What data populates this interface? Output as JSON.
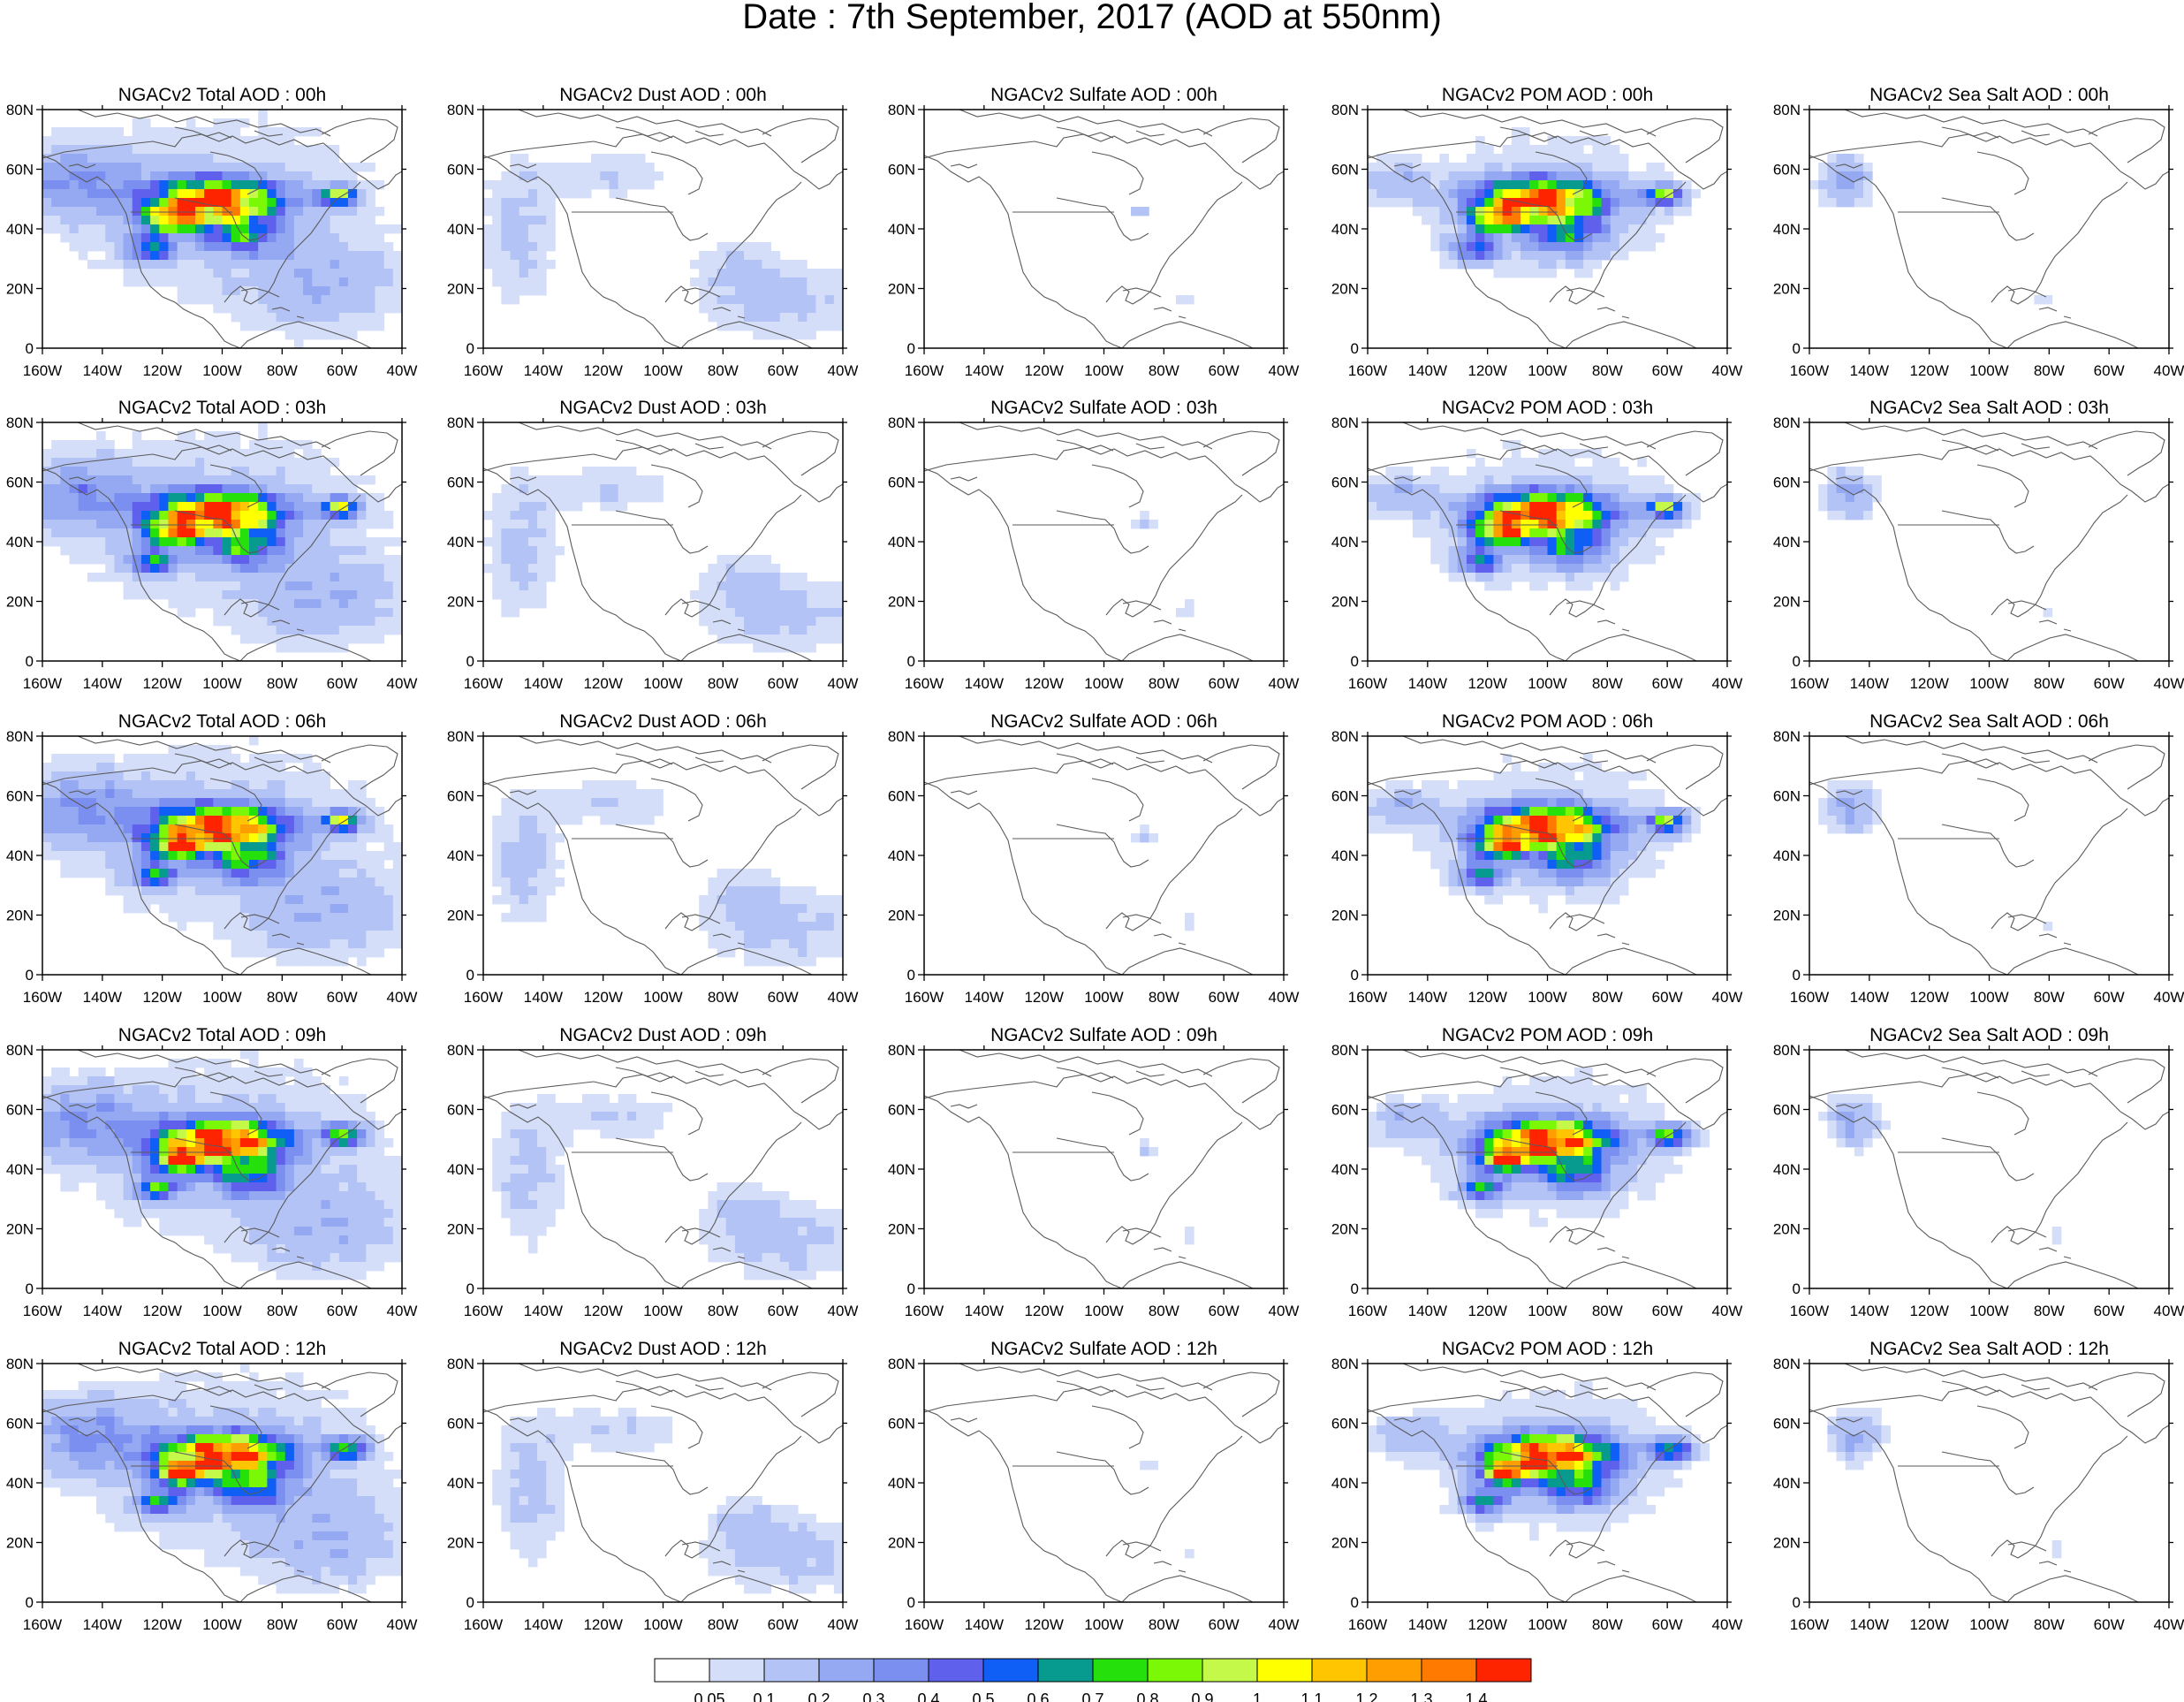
{
  "figure": {
    "title": "Date : 7th September, 2017 (AOD at 550nm)"
  },
  "panels": {
    "row_times": [
      "00h",
      "03h",
      "06h",
      "09h",
      "12h"
    ],
    "columns": [
      {
        "key": "total",
        "titles": [
          "NGACv2 Total AOD : 00h",
          "NGACv2 Total AOD : 03h",
          "NGACv2 Total AOD : 06h",
          "NGACv2 Total AOD : 09h",
          "NGACv2 Total AOD  : 12h"
        ]
      },
      {
        "key": "dust",
        "titles": [
          "NGACv2 Dust AOD : 00h",
          "NGACv2 Dust AOD : 03h",
          "NGACv2 Dust AOD : 06h",
          "NGACv2 Dust AOD : 09h",
          "NGACv2 Dust AOD : 12h"
        ]
      },
      {
        "key": "sulfate",
        "titles": [
          "NGACv2 Sulfate AOD : 00h",
          "NGACv2 Sulfate AOD : 03h",
          "NGACv2 Sulfate AOD : 06h",
          "NGACv2 Sulfate AOD : 09h",
          "NGACv2 Sulfate AOD : 12h"
        ]
      },
      {
        "key": "pom",
        "titles": [
          "NGACv2 POM AOD : 00h",
          "NGACv2 POM AOD : 03h",
          "NGACv2 POM AOD : 06h",
          "NGACv2 POM AOD : 09h",
          "NGACv2 POM  AOD : 12h"
        ]
      },
      {
        "key": "seasalt",
        "titles": [
          "NGACv2 Sea Salt AOD : 00h",
          "NGACv2 Sea Salt AOD : 03h",
          "NGACv2 Sea Salt AOD : 06h",
          "NGACv2 Sea Salt  AOD : 09h",
          "NGACv2 Sea Salt  AOD : 12h"
        ]
      }
    ]
  },
  "axes": {
    "lon_ticks": [
      "160W",
      "140W",
      "120W",
      "100W",
      "80W",
      "60W",
      "40W"
    ],
    "lon_values": [
      -160,
      -140,
      -120,
      -100,
      -80,
      -60,
      -40
    ],
    "lat_ticks": [
      "0",
      "20N",
      "40N",
      "60N",
      "80N"
    ],
    "lat_values": [
      0,
      20,
      40,
      60,
      80
    ],
    "lon_range": [
      -160,
      -40
    ],
    "lat_range": [
      0,
      80
    ]
  },
  "colorbar": {
    "labels": [
      "0.05",
      "0.1",
      "0.2",
      "0.3",
      "0.4",
      "0.5",
      "0.6",
      "0.7",
      "0.8",
      "0.9",
      "1",
      "1.1",
      "1.2",
      "1.3",
      "1.4"
    ],
    "thresholds": [
      0.05,
      0.1,
      0.2,
      0.3,
      0.4,
      0.5,
      0.6,
      0.7,
      0.8,
      0.9,
      1.0,
      1.1,
      1.2,
      1.3,
      1.4
    ],
    "colors": [
      "#ffffff",
      "#d5def9",
      "#b4c3f5",
      "#94a9f2",
      "#7b8ff0",
      "#5f61ec",
      "#0f5ef5",
      "#079a8e",
      "#25e00a",
      "#7af806",
      "#c4f94a",
      "#ffff00",
      "#ffc500",
      "#ff9e00",
      "#ff7a00",
      "#ff2400"
    ]
  },
  "colors": {
    "coastline": "#5a5a5a",
    "frame": "#000000"
  }
}
